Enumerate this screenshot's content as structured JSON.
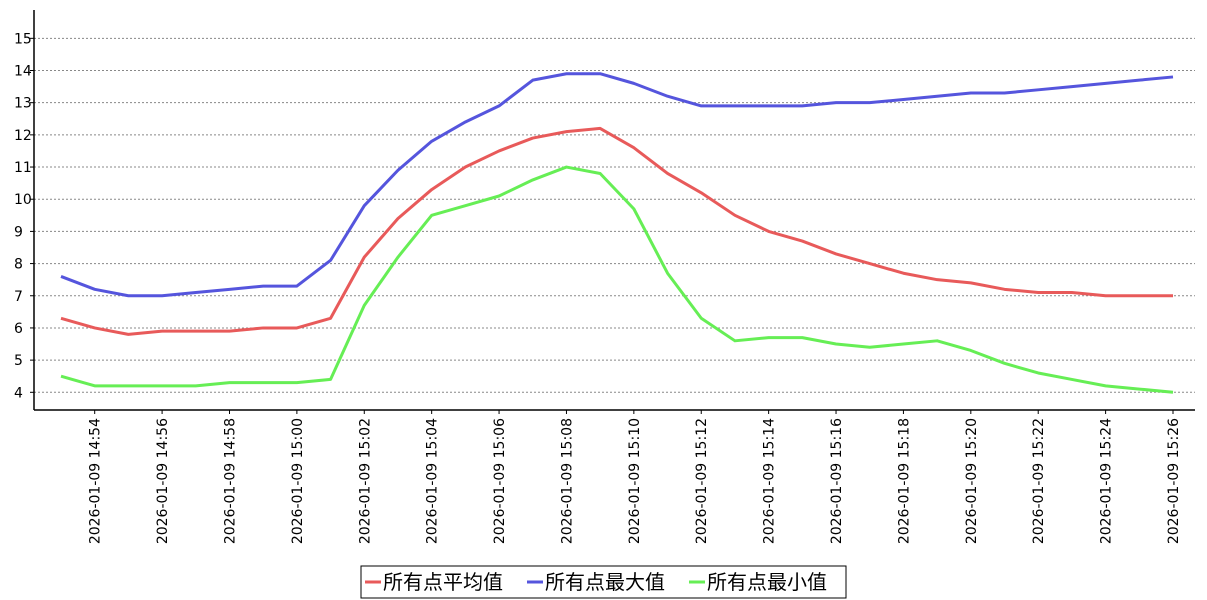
{
  "chart_data": {
    "type": "line",
    "categories": [
      null,
      "2026-01-09 14:54",
      null,
      "2026-01-09 14:56",
      null,
      "2026-01-09 14:58",
      null,
      "2026-01-09 15:00",
      null,
      "2026-01-09 15:02",
      null,
      "2026-01-09 15:04",
      null,
      "2026-01-09 15:06",
      null,
      "2026-01-09 15:08",
      null,
      "2026-01-09 15:10",
      null,
      "2026-01-09 15:12",
      null,
      "2026-01-09 15:14",
      null,
      "2026-01-09 15:16",
      null,
      "2026-01-09 15:18",
      null,
      "2026-01-09 15:20",
      null,
      "2026-01-09 15:22",
      null,
      "2026-01-09 15:24",
      null,
      "2026-01-09 15:26"
    ],
    "series": [
      {
        "name": "所有点平均值",
        "color": "#e85a5a",
        "values": [
          6.3,
          6.0,
          5.8,
          5.9,
          5.9,
          5.9,
          6.0,
          6.0,
          6.3,
          8.2,
          9.4,
          10.3,
          11.0,
          11.5,
          11.9,
          12.1,
          12.2,
          11.6,
          10.8,
          10.2,
          9.5,
          9.0,
          8.7,
          8.3,
          8.0,
          7.7,
          7.5,
          7.4,
          7.2,
          7.1,
          7.1,
          7.0,
          7.0,
          7.0
        ]
      },
      {
        "name": "所有点最大值",
        "color": "#5555dd",
        "values": [
          7.6,
          7.2,
          7.0,
          7.0,
          7.1,
          7.2,
          7.3,
          7.3,
          8.1,
          9.8,
          10.9,
          11.8,
          12.4,
          12.9,
          13.7,
          13.9,
          13.9,
          13.6,
          13.2,
          12.9,
          12.9,
          12.9,
          12.9,
          13.0,
          13.0,
          13.1,
          13.2,
          13.3,
          13.3,
          13.4,
          13.5,
          13.6,
          13.7,
          13.8
        ]
      },
      {
        "name": "所有点最小值",
        "color": "#66ee55",
        "values": [
          4.5,
          4.2,
          4.2,
          4.2,
          4.2,
          4.3,
          4.3,
          4.3,
          4.4,
          6.7,
          8.2,
          9.5,
          9.8,
          10.1,
          10.6,
          11.0,
          10.8,
          9.7,
          7.7,
          6.3,
          5.6,
          5.7,
          5.7,
          5.5,
          5.4,
          5.5,
          5.6,
          5.3,
          4.9,
          4.6,
          4.4,
          4.2,
          4.1,
          4.0
        ]
      }
    ],
    "ylim": [
      3.45,
      15.88
    ],
    "yticks": [
      4,
      5,
      6,
      7,
      8,
      9,
      10,
      11,
      12,
      13,
      14,
      15
    ],
    "grid": true
  }
}
